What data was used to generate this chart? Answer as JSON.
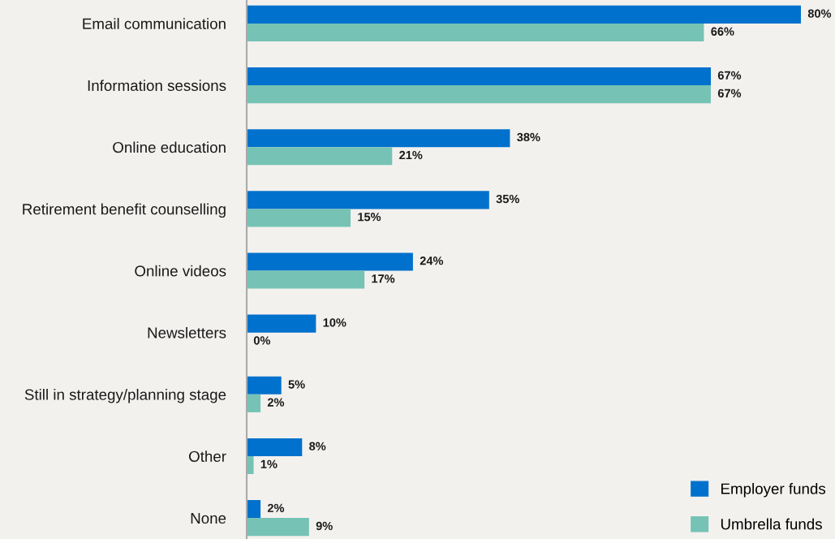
{
  "chart_data": {
    "type": "bar",
    "orientation": "horizontal",
    "categories": [
      "Email communication",
      "Information sessions",
      "Online education",
      "Retirement benefit counselling",
      "Online videos",
      "Newsletters",
      "Still in strategy/planning stage",
      "Other",
      "None"
    ],
    "series": [
      {
        "name": "Employer funds",
        "color": "#0071cc",
        "values": [
          80,
          67,
          38,
          35,
          24,
          10,
          5,
          8,
          2
        ],
        "value_labels": [
          "80%",
          "67%",
          "38%",
          "35%",
          "24%",
          "10%",
          "5%",
          "8%",
          "2%"
        ]
      },
      {
        "name": "Umbrella funds",
        "color": "#76c3b5",
        "values": [
          66,
          67,
          21,
          15,
          17,
          0,
          2,
          1,
          9
        ],
        "value_labels": [
          "66%",
          "67%",
          "21%",
          "15%",
          "17%",
          "0%",
          "2%",
          "1%",
          "9%"
        ]
      }
    ],
    "legend": "bottom right",
    "grid": false
  }
}
